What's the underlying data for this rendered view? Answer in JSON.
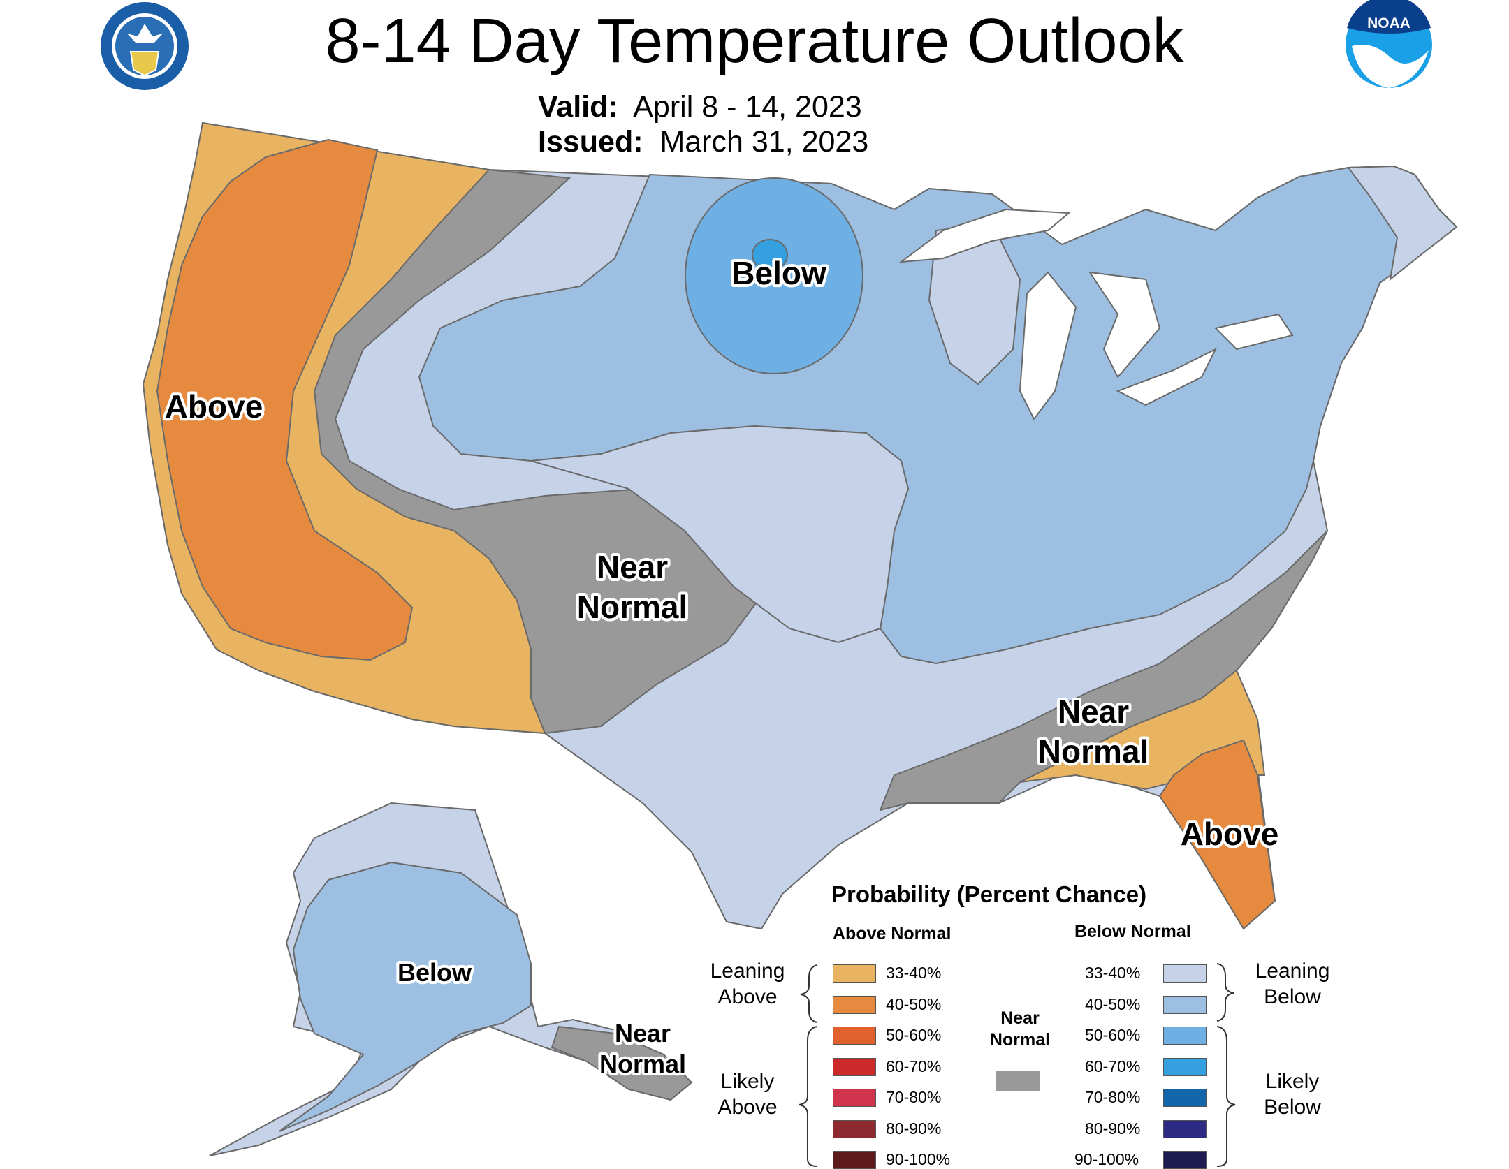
{
  "title": "8-14 Day Temperature Outlook",
  "valid_label": "Valid:",
  "valid_value": "April 8 - 14, 2023",
  "issued_label": "Issued:",
  "issued_value": "March 31, 2023",
  "logos": {
    "left": "doc-seal-icon",
    "right": "noaa-logo-icon",
    "noaa_text": "NOAA"
  },
  "map_labels": {
    "west_above": "Above",
    "north_below": "Below",
    "sw_near_1": "Near",
    "sw_near_2": "Normal",
    "se_near_1": "Near",
    "se_near_2": "Normal",
    "florida_above": "Above",
    "alaska_below": "Below",
    "alaska_near_1": "Near",
    "alaska_near_2": "Normal"
  },
  "legend": {
    "title": "Probability (Percent Chance)",
    "above_header": "Above Normal",
    "below_header": "Below Normal",
    "near_label_1": "Near",
    "near_label_2": "Normal",
    "leaning_above_1": "Leaning",
    "leaning_above_2": "Above",
    "likely_above_1": "Likely",
    "likely_above_2": "Above",
    "leaning_below_1": "Leaning",
    "leaning_below_2": "Below",
    "likely_below_1": "Likely",
    "likely_below_2": "Below",
    "above": [
      {
        "range": "33-40%",
        "color": "#e8b462"
      },
      {
        "range": "40-50%",
        "color": "#e58a3e"
      },
      {
        "range": "50-60%",
        "color": "#e0612e"
      },
      {
        "range": "60-70%",
        "color": "#cc2a2a"
      },
      {
        "range": "70-80%",
        "color": "#d0344c"
      },
      {
        "range": "80-90%",
        "color": "#8c2a30"
      },
      {
        "range": "90-100%",
        "color": "#5c1a1a"
      }
    ],
    "below": [
      {
        "range": "33-40%",
        "color": "#c5d2e8"
      },
      {
        "range": "40-50%",
        "color": "#9dbfe2"
      },
      {
        "range": "50-60%",
        "color": "#6eb0e4"
      },
      {
        "range": "60-70%",
        "color": "#34a0e0"
      },
      {
        "range": "70-80%",
        "color": "#1466aa"
      },
      {
        "range": "80-90%",
        "color": "#2c2a82"
      },
      {
        "range": "90-100%",
        "color": "#1e1a52"
      }
    ],
    "near_color": "#999999"
  }
}
